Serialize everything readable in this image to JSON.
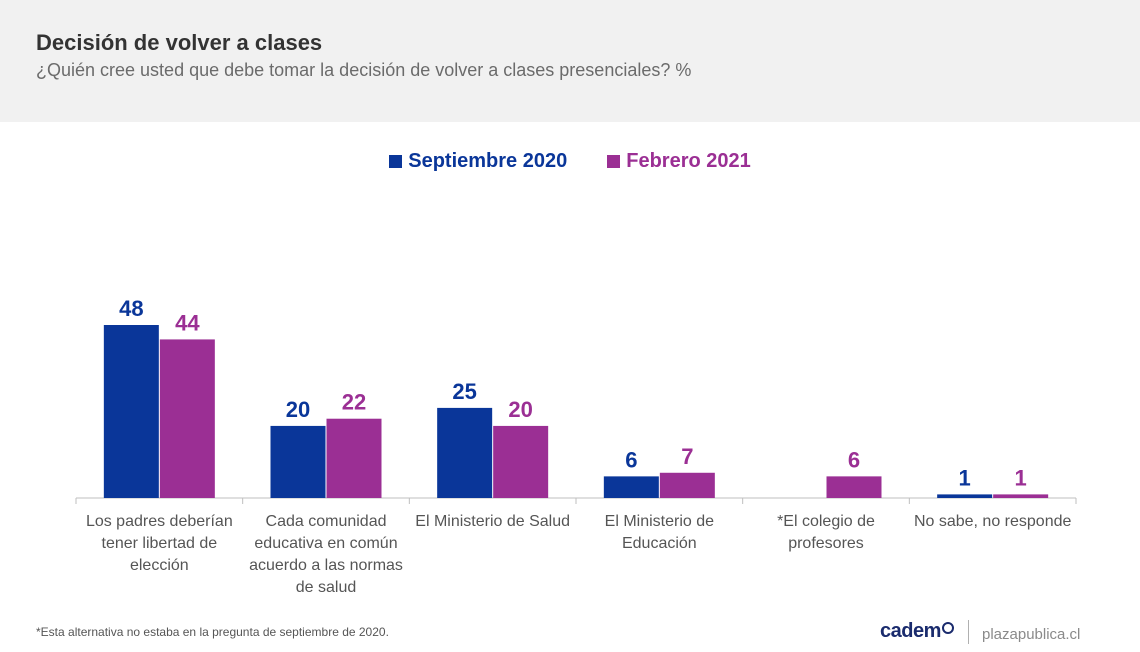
{
  "header": {
    "title": "Decisión de volver a clases",
    "subtitle": "¿Quién cree usted que debe tomar la decisión de volver a clases presenciales? %"
  },
  "colors": {
    "series1": "#0a3699",
    "series2": "#9b2f94",
    "axis": "#bfbfbf",
    "category_text": "#555555"
  },
  "chart_data": {
    "type": "bar",
    "title": "Decisión de volver a clases",
    "subtitle": "¿Quién cree usted que debe tomar la decisión de volver a clases presenciales? %",
    "categories": [
      [
        "Los padres deberían",
        "tener libertad de",
        "elección"
      ],
      [
        "Cada comunidad",
        "educativa en común",
        "acuerdo a las normas",
        "de salud"
      ],
      [
        "El Ministerio de Salud"
      ],
      [
        "El Ministerio de",
        "Educación"
      ],
      [
        "*El colegio de",
        "profesores"
      ],
      [
        "No sabe, no responde"
      ]
    ],
    "series": [
      {
        "name": "Septiembre 2020",
        "values": [
          48,
          20,
          25,
          6,
          null,
          1
        ]
      },
      {
        "name": "Febrero 2021",
        "values": [
          44,
          22,
          20,
          7,
          6,
          1
        ]
      }
    ],
    "ylim": [
      0,
      48
    ],
    "grid": false,
    "legend": "top-center",
    "data_labels": true
  },
  "footnote": "*Esta alternativa no estaba en la pregunta de septiembre de 2020.",
  "brand": {
    "logo_text": "cadem",
    "site": "plazapublica.cl"
  }
}
